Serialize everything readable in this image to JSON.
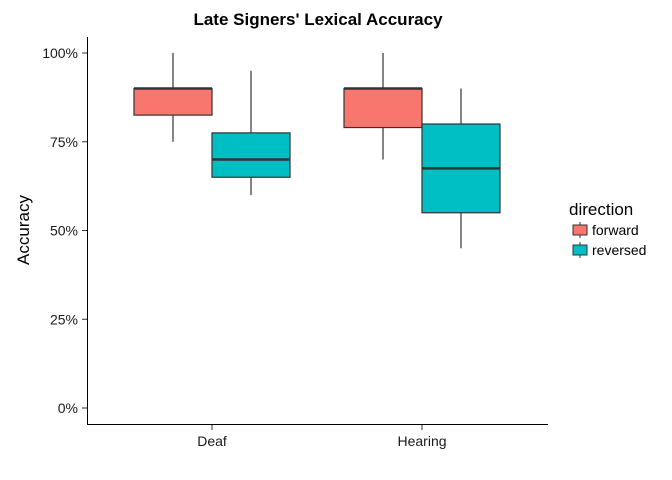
{
  "chart_data": {
    "type": "boxplot",
    "title": "Late Signers' Lexical Accuracy",
    "xlabel": "",
    "ylabel": "Accuracy",
    "ylim": [
      0,
      1
    ],
    "y_ticks": [
      0,
      0.25,
      0.5,
      0.75,
      1.0
    ],
    "y_tick_labels": [
      "0%",
      "25%",
      "50%",
      "75%",
      "100%"
    ],
    "categories": [
      "Deaf",
      "Hearing"
    ],
    "legend": {
      "title": "direction",
      "position": "right",
      "entries": [
        "forward",
        "reversed"
      ]
    },
    "series": [
      {
        "name": "forward",
        "color": "#F8766D",
        "boxes": [
          {
            "category": "Deaf",
            "min": 0.75,
            "q1": 0.825,
            "median": 0.9,
            "q3": 0.9,
            "max": 1.0
          },
          {
            "category": "Hearing",
            "min": 0.7,
            "q1": 0.79,
            "median": 0.9,
            "q3": 0.9,
            "max": 1.0
          }
        ]
      },
      {
        "name": "reversed",
        "color": "#00BFC4",
        "boxes": [
          {
            "category": "Deaf",
            "min": 0.6,
            "q1": 0.65,
            "median": 0.7,
            "q3": 0.775,
            "max": 0.95
          },
          {
            "category": "Hearing",
            "min": 0.45,
            "q1": 0.55,
            "median": 0.675,
            "q3": 0.8,
            "max": 0.9
          }
        ]
      }
    ],
    "grid": false
  }
}
